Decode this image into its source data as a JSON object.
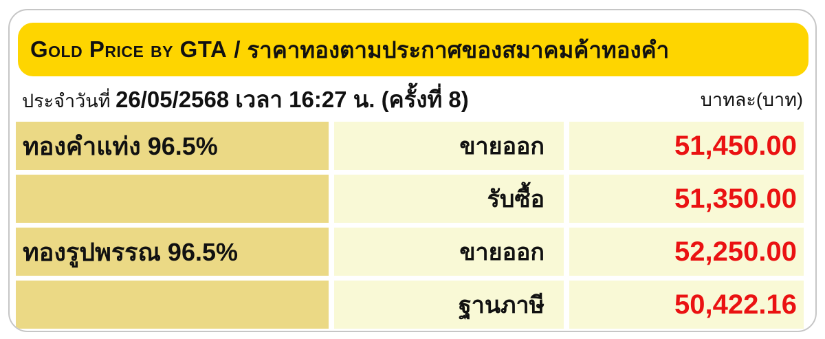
{
  "header": {
    "title_en": "Gold Price by GTA",
    "separator": "/",
    "title_th": "ราคาทองตามประกาศของสมาคมค้าทองคำ",
    "bg_color": "#fed500"
  },
  "info_bar": {
    "date_prefix": "ประจำวันที่",
    "date_value": "26/05/2568 เวลา 16:27 น. (ครั้งที่ 8)",
    "unit_label": "บาทละ(บาท)"
  },
  "price_table": {
    "colors": {
      "label_cell_bg": "#ebd985",
      "value_cell_bg": "#f9f9d6",
      "price_text": "#ea1212",
      "header_bg": "#fed500"
    },
    "rows": [
      {
        "label": "ทองคำแท่ง 96.5%",
        "type": "ขายออก",
        "price": "51,450.00"
      },
      {
        "label": "",
        "type": "รับซื้อ",
        "price": "51,350.00"
      },
      {
        "label": "ทองรูปพรรณ 96.5%",
        "type": "ขายออก",
        "price": "52,250.00"
      },
      {
        "label": "",
        "type": "ฐานภาษี",
        "price": "50,422.16"
      }
    ]
  }
}
